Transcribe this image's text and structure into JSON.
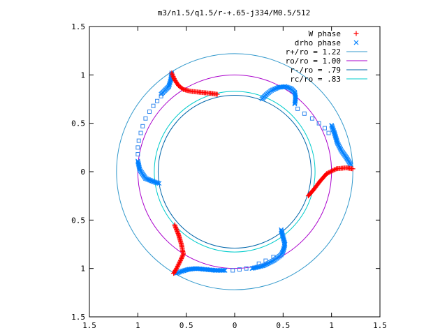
{
  "chart_data": {
    "type": "scatter",
    "title": "m3/n1.5/q1.5/r-+.65-j334/M0.5/512",
    "xlabel": "",
    "ylabel": "",
    "xlim": [
      -1.5,
      1.5
    ],
    "ylim": [
      -1.5,
      1.5
    ],
    "x_tick_labels": [
      "1.5",
      "1",
      "0.5",
      "0",
      "0.5",
      "1",
      "1.5"
    ],
    "y_tick_labels": [
      "1.5",
      "1",
      "0.5",
      "0",
      "0.5",
      "1",
      "1.5"
    ],
    "tick_values": [
      -1.5,
      -1,
      -0.5,
      0,
      0.5,
      1,
      1.5
    ],
    "grid": false,
    "legend_position": "top-right",
    "legend": [
      {
        "label": "W phase",
        "marker": "+",
        "color": "#ff0000"
      },
      {
        "label": "drho phase",
        "marker": "x",
        "color": "#0080ff"
      },
      {
        "label": "r+/ro = 1.22",
        "line": true,
        "color": "#3399cc"
      },
      {
        "label": "ro/ro = 1.00",
        "line": true,
        "color": "#aa00cc"
      },
      {
        "label": "r-/ro = .79",
        "line": true,
        "color": "#0066aa"
      },
      {
        "label": "rc/ro = .83",
        "line": true,
        "color": "#00cccc"
      }
    ],
    "circles": [
      {
        "name": "r+/ro",
        "r": 1.22,
        "color": "#3399cc"
      },
      {
        "name": "ro/ro",
        "r": 1.0,
        "color": "#aa00cc"
      },
      {
        "name": "r-/ro",
        "r": 0.79,
        "color": "#0066aa"
      },
      {
        "name": "rc/ro",
        "r": 0.83,
        "color": "#00cccc"
      }
    ],
    "w_phase_arms": [
      [
        [
          -0.65,
          1.02
        ],
        [
          -0.62,
          0.95
        ],
        [
          -0.58,
          0.89
        ],
        [
          -0.53,
          0.85
        ],
        [
          -0.45,
          0.83
        ],
        [
          -0.35,
          0.82
        ],
        [
          -0.25,
          0.81
        ],
        [
          -0.18,
          0.8
        ]
      ],
      [
        [
          1.22,
          0.03
        ],
        [
          1.15,
          0.04
        ],
        [
          1.05,
          0.03
        ],
        [
          0.95,
          -0.02
        ],
        [
          0.88,
          -0.1
        ],
        [
          0.82,
          -0.18
        ],
        [
          0.76,
          -0.25
        ]
      ],
      [
        [
          -0.62,
          -0.55
        ],
        [
          -0.58,
          -0.65
        ],
        [
          -0.55,
          -0.75
        ],
        [
          -0.53,
          -0.85
        ],
        [
          -0.56,
          -0.92
        ],
        [
          -0.6,
          -1.0
        ],
        [
          -0.63,
          -1.05
        ]
      ]
    ],
    "drho_phase_arms": [
      [
        [
          -0.65,
          1.02
        ],
        [
          -0.66,
          0.95
        ],
        [
          -0.68,
          0.88
        ],
        [
          -0.72,
          0.84
        ],
        [
          -0.76,
          0.8
        ]
      ],
      [
        [
          0.28,
          0.75
        ],
        [
          0.33,
          0.8
        ],
        [
          0.38,
          0.84
        ],
        [
          0.45,
          0.87
        ],
        [
          0.52,
          0.88
        ],
        [
          0.58,
          0.86
        ],
        [
          0.62,
          0.82
        ],
        [
          0.63,
          0.76
        ],
        [
          0.62,
          0.7
        ]
      ],
      [
        [
          1.2,
          0.07
        ],
        [
          1.15,
          0.15
        ],
        [
          1.1,
          0.22
        ],
        [
          1.06,
          0.3
        ],
        [
          1.03,
          0.4
        ],
        [
          1.0,
          0.48
        ]
      ],
      [
        [
          -1.0,
          0.11
        ],
        [
          -0.98,
          0.02
        ],
        [
          -0.92,
          -0.07
        ],
        [
          -0.82,
          -0.11
        ],
        [
          -0.78,
          -0.12
        ]
      ],
      [
        [
          0.48,
          -0.6
        ],
        [
          0.5,
          -0.68
        ],
        [
          0.52,
          -0.75
        ],
        [
          0.5,
          -0.82
        ],
        [
          0.48,
          -0.86
        ],
        [
          0.4,
          -0.92
        ],
        [
          0.3,
          -0.97
        ],
        [
          0.18,
          -1.0
        ]
      ],
      [
        [
          -0.6,
          -1.05
        ],
        [
          -0.55,
          -1.03
        ],
        [
          -0.48,
          -1.01
        ],
        [
          -0.4,
          -1.0
        ],
        [
          -0.3,
          -1.01
        ],
        [
          -0.2,
          -1.02
        ],
        [
          -0.1,
          -1.02
        ]
      ]
    ],
    "drho_phase_sparse": [
      [
        -0.76,
        0.78
      ],
      [
        -0.8,
        0.73
      ],
      [
        -0.84,
        0.68
      ],
      [
        -0.88,
        0.62
      ],
      [
        -0.92,
        0.55
      ],
      [
        -0.95,
        0.47
      ],
      [
        -0.97,
        0.4
      ],
      [
        -0.99,
        0.32
      ],
      [
        -1.0,
        0.25
      ],
      [
        -1.0,
        0.18
      ],
      [
        0.65,
        0.65
      ],
      [
        0.72,
        0.6
      ],
      [
        0.8,
        0.55
      ],
      [
        0.87,
        0.5
      ],
      [
        0.93,
        0.45
      ],
      [
        0.97,
        0.4
      ],
      [
        0.4,
        -0.88
      ],
      [
        0.32,
        -0.92
      ],
      [
        0.25,
        -0.95
      ],
      [
        0.12,
        -1.0
      ],
      [
        0.05,
        -1.01
      ],
      [
        -0.02,
        -1.02
      ]
    ]
  }
}
